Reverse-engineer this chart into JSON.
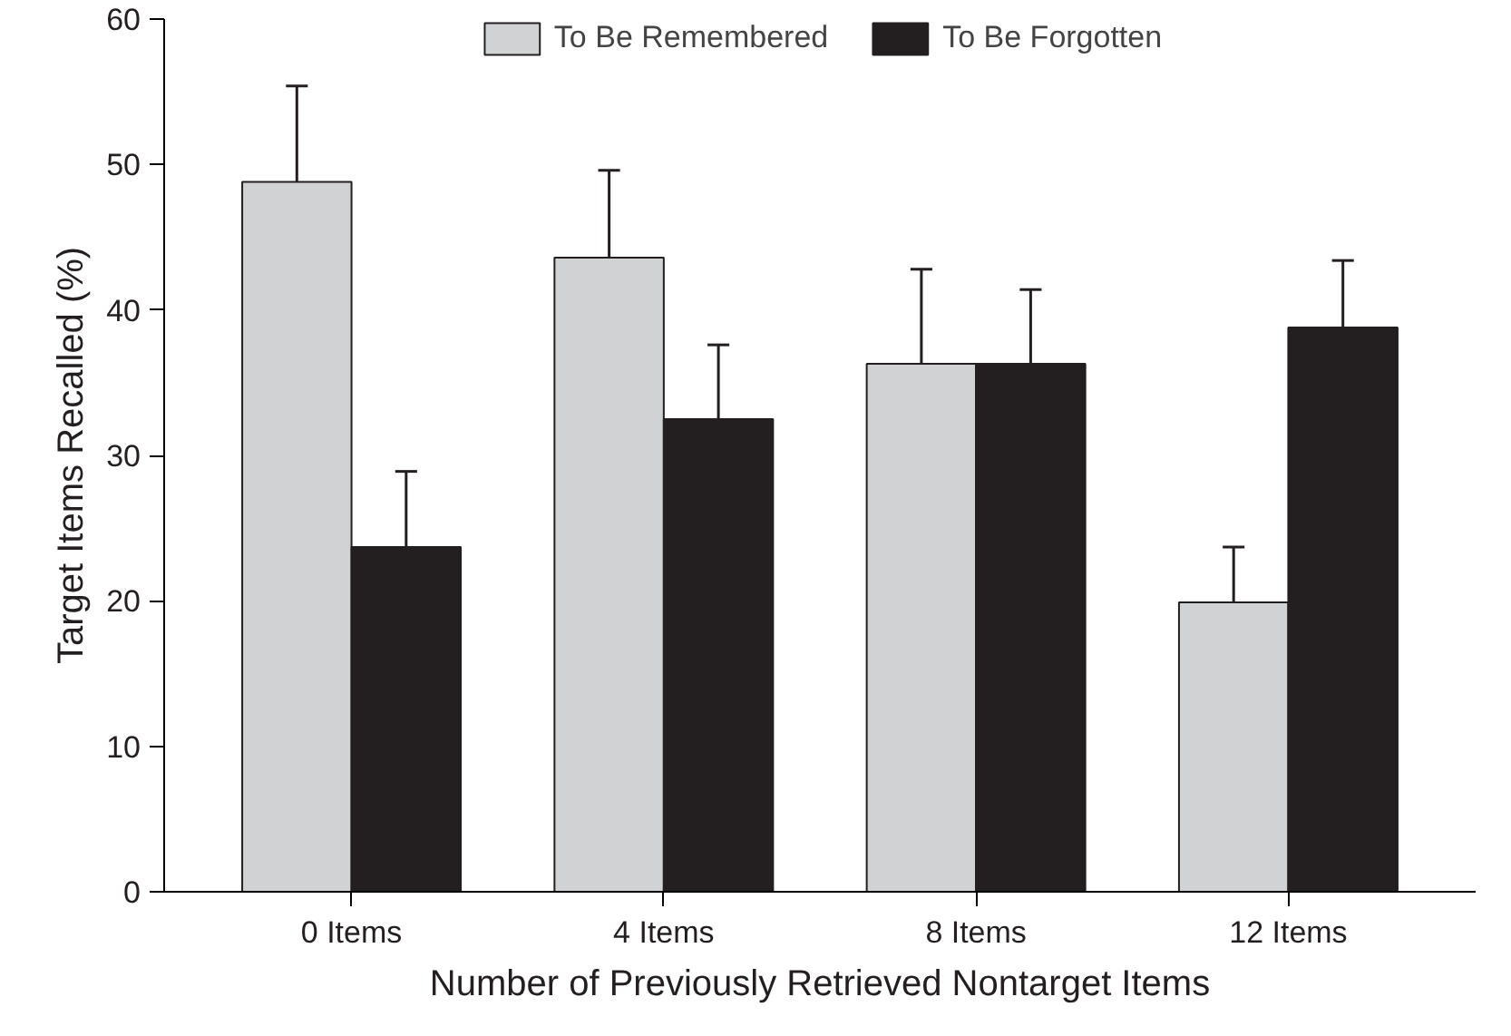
{
  "chart_data": {
    "type": "bar",
    "xlabel": "Number of Previously Retrieved Nontarget Items",
    "ylabel": "Target Items Recalled (%)",
    "categories": [
      "0 Items",
      "4 Items",
      "8 Items",
      "12 Items"
    ],
    "series": [
      {
        "name": "To Be Remembered",
        "color": "#d1d2d4",
        "values": [
          48.8,
          43.6,
          36.3,
          19.9
        ],
        "errors": [
          [
            48.8,
            55.4
          ],
          [
            43.6,
            49.6
          ],
          [
            36.3,
            42.8
          ],
          [
            19.9,
            23.7
          ]
        ]
      },
      {
        "name": "To Be Forgotten",
        "color": "#231f20",
        "values": [
          23.7,
          32.5,
          36.3,
          38.8
        ],
        "errors": [
          [
            23.7,
            28.9
          ],
          [
            32.5,
            37.6
          ],
          [
            36.3,
            41.4
          ],
          [
            38.8,
            43.4
          ]
        ]
      }
    ],
    "ylim": [
      0,
      60
    ],
    "yticks": [
      0,
      10,
      20,
      30,
      40,
      50,
      60
    ],
    "grid": false,
    "legend": "top"
  }
}
